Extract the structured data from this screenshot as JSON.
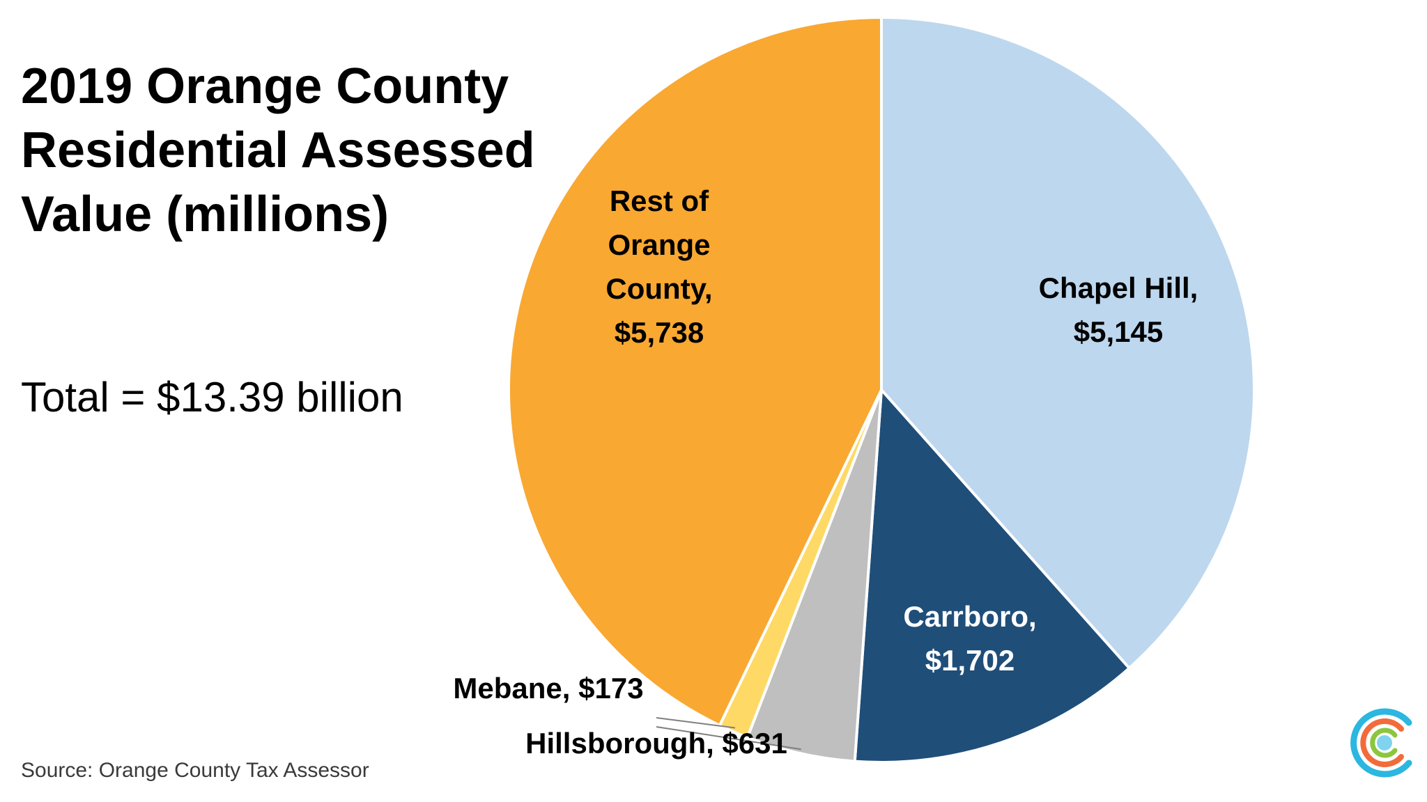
{
  "title": "2019 Orange County Residential Assessed Value (millions)",
  "subtitle": "Total = $13.39 billion",
  "source": "Source: Orange County Tax Assessor",
  "chart_data": {
    "type": "pie",
    "unit": "millions",
    "start": "12 o'clock",
    "direction": "clockwise",
    "slices": [
      {
        "label": "Chapel Hill",
        "value": 5145,
        "display": "$5,145",
        "color": "#BDD7EE",
        "text_color": "#000000",
        "lines": [
          "Chapel Hill,",
          "$5,145"
        ]
      },
      {
        "label": "Carrboro",
        "value": 1702,
        "display": "$1,702",
        "color": "#1F4E79",
        "text_color": "#ffffff",
        "lines": [
          "Carrboro,",
          "$1,702"
        ]
      },
      {
        "label": "Hillsborough",
        "value": 631,
        "display": "$631",
        "color": "#BFBFBF",
        "text_color": "#000000",
        "lines": [
          "Hillsborough, $631"
        ]
      },
      {
        "label": "Mebane",
        "value": 173,
        "display": "$173",
        "color": "#FFD966",
        "text_color": "#000000",
        "lines": [
          "Mebane, $173"
        ]
      },
      {
        "label": "Rest of Orange County",
        "value": 5738,
        "display": "$5,738",
        "color": "#F9A832",
        "text_color": "#000000",
        "lines": [
          "Rest of",
          "Orange",
          "County,",
          "$5,738"
        ]
      }
    ]
  }
}
